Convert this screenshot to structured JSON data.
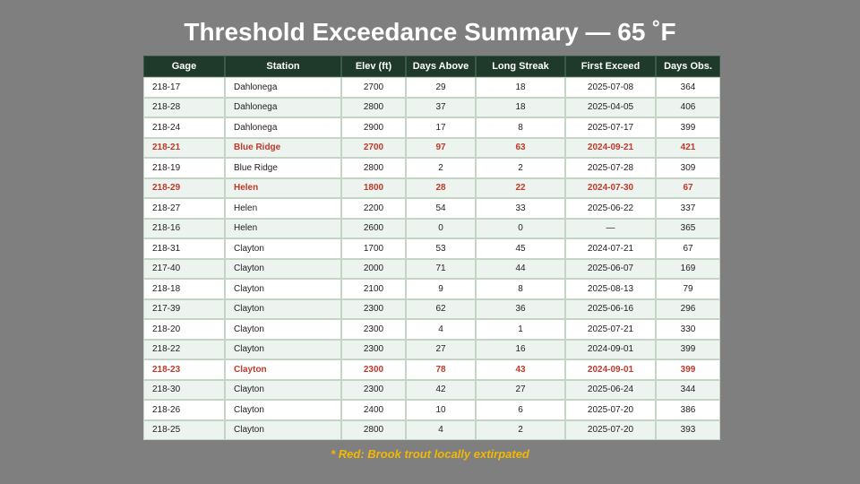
{
  "title": "Threshold Exceedance Summary — 65 ˚F",
  "table": {
    "columns": [
      "Gage",
      "Station",
      "Elev (ft)",
      "Days Above",
      "Long Streak",
      "First Exceed",
      "Days Obs."
    ],
    "rows": [
      [
        "218-17",
        "Dahlonega",
        2700,
        29,
        18,
        "2025-07-08",
        364
      ],
      [
        "218-28",
        "Dahlonega",
        2800,
        37,
        18,
        "2025-04-05",
        406
      ],
      [
        "218-24",
        "Dahlonega",
        2900,
        17,
        8,
        "2025-07-17",
        399
      ],
      [
        "218-21",
        "Blue Ridge",
        2700,
        97,
        63,
        "2024-09-21",
        421
      ],
      [
        "218-19",
        "Blue Ridge",
        2800,
        2,
        2,
        "2025-07-28",
        309
      ],
      [
        "218-29",
        "Helen",
        1800,
        28,
        22,
        "2024-07-30",
        67
      ],
      [
        "218-27",
        "Helen",
        2200,
        54,
        33,
        "2025-06-22",
        337
      ],
      [
        "218-16",
        "Helen",
        2600,
        0,
        0,
        "—",
        365
      ],
      [
        "218-31",
        "Clayton",
        1700,
        53,
        45,
        "2024-07-21",
        67
      ],
      [
        "217-40",
        "Clayton",
        2000,
        71,
        44,
        "2025-06-07",
        169
      ],
      [
        "218-18",
        "Clayton",
        2100,
        9,
        8,
        "2025-08-13",
        79
      ],
      [
        "217-39",
        "Clayton",
        2300,
        62,
        36,
        "2025-06-16",
        296
      ],
      [
        "218-20",
        "Clayton",
        2300,
        4,
        1,
        "2025-07-21",
        330
      ],
      [
        "218-22",
        "Clayton",
        2300,
        27,
        16,
        "2024-09-01",
        399
      ],
      [
        "218-23",
        "Clayton",
        2300,
        78,
        43,
        "2024-09-01",
        399
      ],
      [
        "218-30",
        "Clayton",
        2300,
        42,
        27,
        "2025-06-24",
        344
      ],
      [
        "218-26",
        "Clayton",
        2400,
        10,
        6,
        "2025-07-20",
        386
      ],
      [
        "218-25",
        "Clayton",
        2800,
        4,
        2,
        "2025-07-20",
        393
      ]
    ],
    "red_rows": [
      3,
      5,
      14
    ],
    "red_color": "#c0392b"
  },
  "footnote": "* Red: Brook trout locally extirpated"
}
